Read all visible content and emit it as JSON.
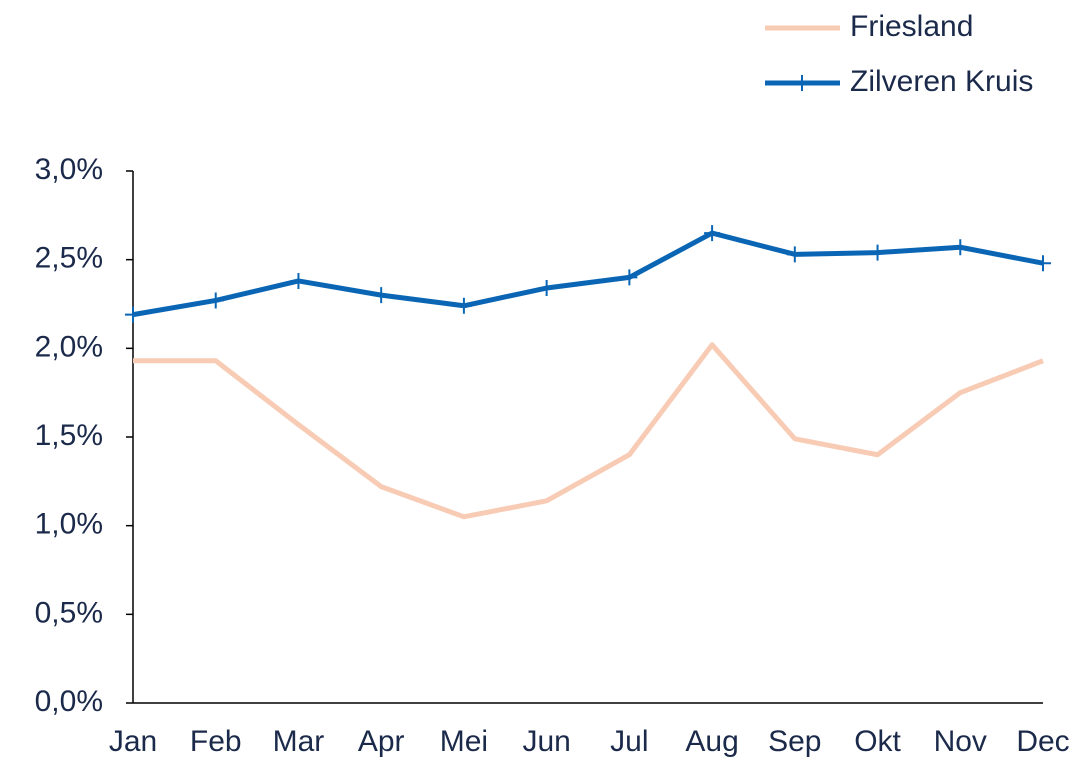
{
  "chart_data": {
    "type": "line",
    "categories": [
      "Jan",
      "Feb",
      "Mar",
      "Apr",
      "Mei",
      "Jun",
      "Jul",
      "Aug",
      "Sep",
      "Okt",
      "Nov",
      "Dec"
    ],
    "series": [
      {
        "name": "Friesland",
        "color": "#f8cbb4",
        "marker": "none",
        "values": [
          1.93,
          1.93,
          1.57,
          1.22,
          1.05,
          1.14,
          1.4,
          2.02,
          1.49,
          1.4,
          1.75,
          1.93
        ]
      },
      {
        "name": "Zilveren Kruis",
        "color": "#0a66b4",
        "marker": "plus",
        "values": [
          2.19,
          2.27,
          2.38,
          2.3,
          2.24,
          2.34,
          2.4,
          2.65,
          2.53,
          2.54,
          2.57,
          2.48
        ]
      }
    ],
    "ylim": [
      0,
      3.0
    ],
    "yticks": [
      {
        "value": 0,
        "label": "0,0%"
      },
      {
        "value": 0.5,
        "label": "0,5%"
      },
      {
        "value": 1.0,
        "label": "1,0%"
      },
      {
        "value": 1.5,
        "label": "1,5%"
      },
      {
        "value": 2.0,
        "label": "2,0%"
      },
      {
        "value": 2.5,
        "label": "2,5%"
      },
      {
        "value": 3.0,
        "label": "3,0%"
      }
    ],
    "grid": false,
    "legend": "upper right"
  }
}
